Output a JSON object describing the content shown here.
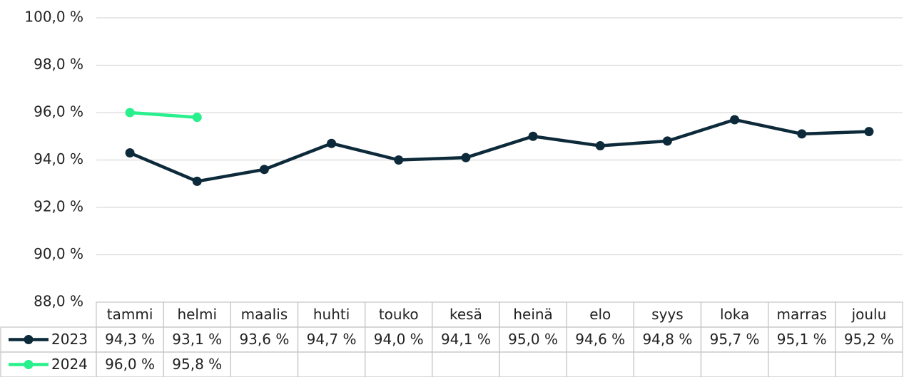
{
  "chart_data": {
    "type": "line",
    "categories": [
      "tammi",
      "helmi",
      "maalis",
      "huhti",
      "touko",
      "kesä",
      "heinä",
      "elo",
      "syys",
      "loka",
      "marras",
      "joulu"
    ],
    "series": [
      {
        "name": "2023",
        "color": "#0d2a3a",
        "values": [
          94.3,
          93.1,
          93.6,
          94.7,
          94.0,
          94.1,
          95.0,
          94.6,
          94.8,
          95.7,
          95.1,
          95.2
        ],
        "value_labels": [
          "94,3 %",
          "93,1 %",
          "93,6 %",
          "94,7 %",
          "94,0 %",
          "94,1 %",
          "95,0 %",
          "94,6 %",
          "94,8 %",
          "95,7 %",
          "95,1 %",
          "95,2 %"
        ]
      },
      {
        "name": "2024",
        "color": "#27f08c",
        "values": [
          96.0,
          95.8,
          null,
          null,
          null,
          null,
          null,
          null,
          null,
          null,
          null,
          null
        ],
        "value_labels": [
          "96,0 %",
          "95,8 %",
          null,
          null,
          null,
          null,
          null,
          null,
          null,
          null,
          null,
          null
        ]
      }
    ],
    "ylim": [
      88,
      100
    ],
    "yticks": [
      {
        "value": 88,
        "label": "88,0 %"
      },
      {
        "value": 90,
        "label": "90,0 %"
      },
      {
        "value": 92,
        "label": "92,0 %"
      },
      {
        "value": 94,
        "label": "94,0 %"
      },
      {
        "value": 96,
        "label": "96,0 %"
      },
      {
        "value": 98,
        "label": "98,0 %"
      },
      {
        "value": 100,
        "label": "100,0 %"
      }
    ],
    "grid": true
  }
}
